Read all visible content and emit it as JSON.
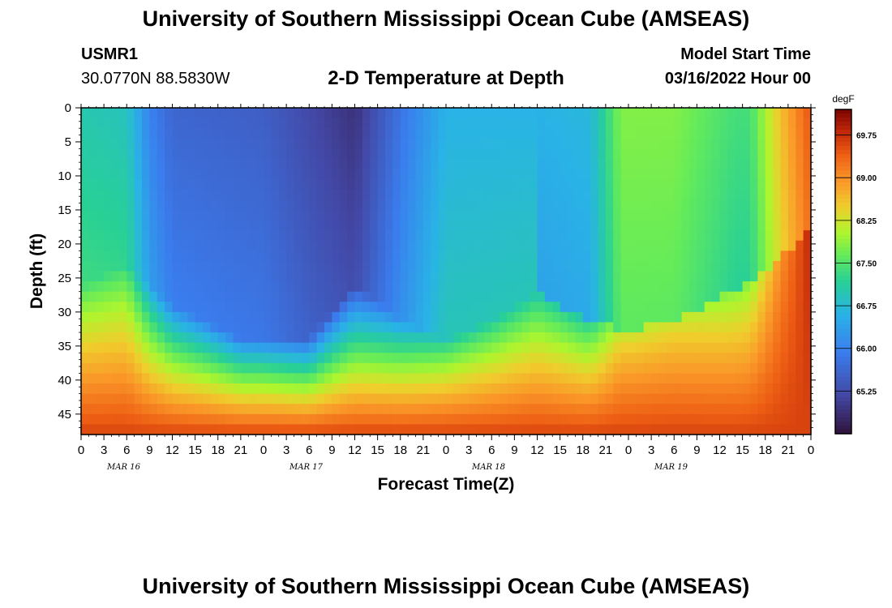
{
  "header": {
    "title": "University of Southern Mississippi Ocean Cube (AMSEAS)",
    "station": "USMR1",
    "coords": "30.0770N  88.5830W",
    "subtitle": "2-D Temperature at Depth",
    "start_label": "Model Start Time",
    "start_value": "03/16/2022 Hour 00"
  },
  "footer": {
    "title": "University of Southern Mississippi Ocean Cube (AMSEAS)"
  },
  "chart_data": {
    "type": "heatmap",
    "title": "2-D Temperature at Depth",
    "xlabel": "Forecast Time(Z)",
    "ylabel": "Depth (ft)",
    "x_range_hours": [
      0,
      96
    ],
    "x_ticks": [
      "0",
      "3",
      "6",
      "9",
      "12",
      "15",
      "18",
      "21",
      "0",
      "3",
      "6",
      "9",
      "12",
      "15",
      "18",
      "21",
      "0",
      "3",
      "6",
      "9",
      "12",
      "15",
      "18",
      "21",
      "0",
      "3",
      "6",
      "9",
      "12",
      "15",
      "18",
      "21",
      "0"
    ],
    "day_labels": [
      {
        "label": "MAR 16",
        "hour": 12
      },
      {
        "label": "MAR 17",
        "hour": 36
      },
      {
        "label": "MAR 18",
        "hour": 60
      },
      {
        "label": "MAR 19",
        "hour": 84
      }
    ],
    "y_range_ft": [
      0,
      48
    ],
    "y_ticks": [
      0,
      5,
      10,
      15,
      20,
      25,
      30,
      35,
      40,
      45
    ],
    "colorbar": {
      "unit": "degF",
      "min": 64.5,
      "max": 70.2,
      "ticks": [
        69.75,
        69.0,
        68.25,
        67.5,
        66.75,
        66.0,
        65.25
      ],
      "tick_labels": [
        "69.75",
        "69.00",
        "68.25",
        "67.50",
        "66.75",
        "66.00",
        "65.25"
      ]
    },
    "surface_temp_profile": [
      {
        "hour": 0,
        "temp": 67.0
      },
      {
        "hour": 6,
        "temp": 66.9
      },
      {
        "hour": 9,
        "temp": 66.0
      },
      {
        "hour": 12,
        "temp": 65.6
      },
      {
        "hour": 24,
        "temp": 65.5
      },
      {
        "hour": 36,
        "temp": 64.9
      },
      {
        "hour": 42,
        "temp": 65.8
      },
      {
        "hour": 48,
        "temp": 66.6
      },
      {
        "hour": 60,
        "temp": 66.6
      },
      {
        "hour": 67,
        "temp": 66.7
      },
      {
        "hour": 71,
        "temp": 67.8
      },
      {
        "hour": 78,
        "temp": 67.8
      },
      {
        "hour": 86,
        "temp": 67.4
      },
      {
        "hour": 88,
        "temp": 67.4
      },
      {
        "hour": 92,
        "temp": 68.6
      },
      {
        "hour": 96,
        "temp": 69.5
      }
    ],
    "bottom_temp": 69.6,
    "mixed_layer_depth_ft": [
      {
        "hour": 0,
        "depth": 32
      },
      {
        "hour": 6,
        "depth": 29
      },
      {
        "hour": 12,
        "depth": 35
      },
      {
        "hour": 21,
        "depth": 40
      },
      {
        "hour": 30,
        "depth": 40
      },
      {
        "hour": 36,
        "depth": 32
      },
      {
        "hour": 42,
        "depth": 37
      },
      {
        "hour": 48,
        "depth": 40
      },
      {
        "hour": 54,
        "depth": 37
      },
      {
        "hour": 60,
        "depth": 33
      },
      {
        "hour": 66,
        "depth": 37
      },
      {
        "hour": 72,
        "depth": 39
      },
      {
        "hour": 78,
        "depth": 37
      },
      {
        "hour": 84,
        "depth": 34
      },
      {
        "hour": 90,
        "depth": 30
      },
      {
        "hour": 96,
        "depth": 24
      }
    ]
  }
}
